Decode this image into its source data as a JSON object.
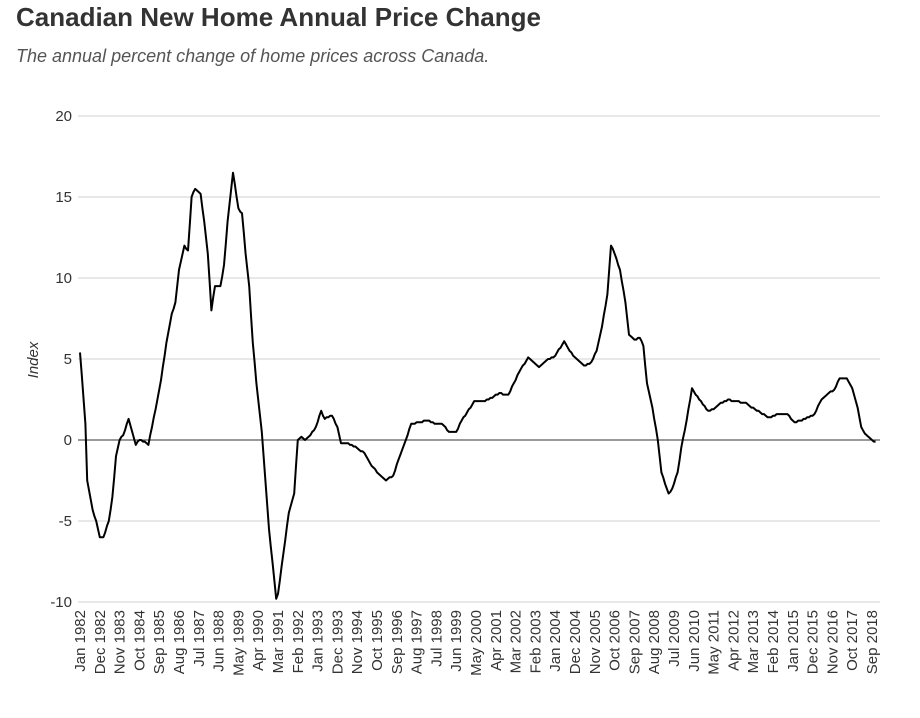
{
  "chart_data": {
    "type": "line",
    "title": "Canadian New Home Annual Price Change",
    "subtitle": "The annual percent change of home prices across Canada.",
    "y_label": "Index",
    "categories": [
      "Jan 1982",
      null,
      null,
      null,
      null,
      null,
      null,
      null,
      null,
      null,
      null,
      "Dec 1982",
      null,
      null,
      null,
      null,
      null,
      null,
      null,
      null,
      null,
      null,
      "Nov 1983",
      null,
      null,
      null,
      null,
      null,
      null,
      null,
      null,
      null,
      null,
      "Oct 1984",
      null,
      null,
      null,
      null,
      null,
      null,
      null,
      null,
      null,
      null,
      "Sep 1985",
      null,
      null,
      null,
      null,
      null,
      null,
      null,
      null,
      null,
      null,
      "Aug 1986",
      null,
      null,
      null,
      null,
      null,
      null,
      null,
      null,
      null,
      null,
      "Jul 1987",
      null,
      null,
      null,
      null,
      null,
      null,
      null,
      null,
      null,
      null,
      "Jun 1988",
      null,
      null,
      null,
      null,
      null,
      null,
      null,
      null,
      null,
      null,
      "May 1989",
      null,
      null,
      null,
      null,
      null,
      null,
      null,
      null,
      null,
      null,
      "Apr 1990",
      null,
      null,
      null,
      null,
      null,
      null,
      null,
      null,
      null,
      null,
      "Mar 1991",
      null,
      null,
      null,
      null,
      null,
      null,
      null,
      null,
      null,
      null,
      "Feb 1992",
      null,
      null,
      null,
      null,
      null,
      null,
      null,
      null,
      null,
      null,
      "Jan 1993",
      null,
      null,
      null,
      null,
      null,
      null,
      null,
      null,
      null,
      null,
      "Dec 1993",
      null,
      null,
      null,
      null,
      null,
      null,
      null,
      null,
      null,
      null,
      "Nov 1994",
      null,
      null,
      null,
      null,
      null,
      null,
      null,
      null,
      null,
      null,
      "Oct 1995",
      null,
      null,
      null,
      null,
      null,
      null,
      null,
      null,
      null,
      null,
      "Sep 1996",
      null,
      null,
      null,
      null,
      null,
      null,
      null,
      null,
      null,
      null,
      "Aug 1997",
      null,
      null,
      null,
      null,
      null,
      null,
      null,
      null,
      null,
      null,
      "Jul 1998",
      null,
      null,
      null,
      null,
      null,
      null,
      null,
      null,
      null,
      null,
      "Jun 1999",
      null,
      null,
      null,
      null,
      null,
      null,
      null,
      null,
      null,
      null,
      "May 2000",
      null,
      null,
      null,
      null,
      null,
      null,
      null,
      null,
      null,
      null,
      "Apr 2001",
      null,
      null,
      null,
      null,
      null,
      null,
      null,
      null,
      null,
      null,
      "Mar 2002",
      null,
      null,
      null,
      null,
      null,
      null,
      null,
      null,
      null,
      null,
      "Feb 2003",
      null,
      null,
      null,
      null,
      null,
      null,
      null,
      null,
      null,
      null,
      "Jan 2004",
      null,
      null,
      null,
      null,
      null,
      null,
      null,
      null,
      null,
      null,
      "Dec 2004",
      null,
      null,
      null,
      null,
      null,
      null,
      null,
      null,
      null,
      null,
      "Nov 2005",
      null,
      null,
      null,
      null,
      null,
      null,
      null,
      null,
      null,
      null,
      "Oct 2006",
      null,
      null,
      null,
      null,
      null,
      null,
      null,
      null,
      null,
      null,
      "Sep 2007",
      null,
      null,
      null,
      null,
      null,
      null,
      null,
      null,
      null,
      null,
      "Aug 2008",
      null,
      null,
      null,
      null,
      null,
      null,
      null,
      null,
      null,
      null,
      "Jul 2009",
      null,
      null,
      null,
      null,
      null,
      null,
      null,
      null,
      null,
      null,
      "Jun 2010",
      null,
      null,
      null,
      null,
      null,
      null,
      null,
      null,
      null,
      null,
      "May 2011",
      null,
      null,
      null,
      null,
      null,
      null,
      null,
      null,
      null,
      null,
      "Apr 2012",
      null,
      null,
      null,
      null,
      null,
      null,
      null,
      null,
      null,
      null,
      "Mar 2013",
      null,
      null,
      null,
      null,
      null,
      null,
      null,
      null,
      null,
      null,
      "Feb 2014",
      null,
      null,
      null,
      null,
      null,
      null,
      null,
      null,
      null,
      null,
      "Jan 2015",
      null,
      null,
      null,
      null,
      null,
      null,
      null,
      null,
      null,
      null,
      "Dec 2015",
      null,
      null,
      null,
      null,
      null,
      null,
      null,
      null,
      null,
      null,
      "Nov 2016",
      null,
      null,
      null,
      null,
      null,
      null,
      null,
      null,
      null,
      null,
      "Oct 2017",
      null,
      null,
      null,
      null,
      null,
      null,
      null,
      null,
      null,
      null,
      "Sep 2018",
      null,
      null
    ],
    "values": [
      5.4,
      4.0,
      2.5,
      1.0,
      -2.5,
      -3.1,
      -3.7,
      -4.3,
      -4.7,
      -5.0,
      -5.5,
      -6.0,
      -6.0,
      -6.0,
      -5.7,
      -5.3,
      -5.0,
      -4.3,
      -3.5,
      -2.3,
      -1.0,
      -0.5,
      0.0,
      0.2,
      0.3,
      0.6,
      1.0,
      1.3,
      0.9,
      0.5,
      0.1,
      -0.3,
      -0.1,
      0.0,
      0.0,
      -0.1,
      -0.1,
      -0.2,
      -0.3,
      0.3,
      0.8,
      1.4,
      1.9,
      2.5,
      3.1,
      3.7,
      4.5,
      5.2,
      6.0,
      6.6,
      7.2,
      7.8,
      8.1,
      8.5,
      9.5,
      10.5,
      11.0,
      11.5,
      12.0,
      11.8,
      11.7,
      13.3,
      15.0,
      15.3,
      15.5,
      15.4,
      15.3,
      15.2,
      14.3,
      13.5,
      12.5,
      11.5,
      9.8,
      8.0,
      8.8,
      9.5,
      9.5,
      9.5,
      9.5,
      10.1,
      10.8,
      12.1,
      13.5,
      14.5,
      15.5,
      16.5,
      15.8,
      15.0,
      14.3,
      14.1,
      14.0,
      12.8,
      11.5,
      10.5,
      9.5,
      7.7,
      6.0,
      4.8,
      3.5,
      2.5,
      1.5,
      0.5,
      -1.0,
      -2.5,
      -4.0,
      -5.5,
      -6.6,
      -7.6,
      -8.7,
      -9.8,
      -9.5,
      -8.7,
      -7.8,
      -7.0,
      -6.2,
      -5.3,
      -4.5,
      -4.1,
      -3.7,
      -3.3,
      -1.6,
      0.0,
      0.1,
      0.2,
      0.1,
      0.0,
      0.1,
      0.2,
      0.3,
      0.5,
      0.6,
      0.8,
      1.1,
      1.5,
      1.8,
      1.5,
      1.3,
      1.4,
      1.4,
      1.5,
      1.5,
      1.3,
      1.0,
      0.8,
      0.3,
      -0.2,
      -0.2,
      -0.2,
      -0.2,
      -0.2,
      -0.3,
      -0.3,
      -0.4,
      -0.4,
      -0.5,
      -0.6,
      -0.7,
      -0.7,
      -0.8,
      -1.0,
      -1.2,
      -1.4,
      -1.6,
      -1.7,
      -1.8,
      -2.0,
      -2.1,
      -2.2,
      -2.3,
      -2.4,
      -2.5,
      -2.4,
      -2.3,
      -2.3,
      -2.2,
      -1.9,
      -1.5,
      -1.2,
      -0.9,
      -0.6,
      -0.3,
      0.0,
      0.3,
      0.7,
      1.0,
      1.0,
      1.0,
      1.1,
      1.1,
      1.1,
      1.1,
      1.2,
      1.2,
      1.2,
      1.2,
      1.1,
      1.1,
      1.0,
      1.0,
      1.0,
      1.0,
      1.0,
      0.9,
      0.8,
      0.6,
      0.5,
      0.5,
      0.5,
      0.5,
      0.5,
      0.7,
      1.0,
      1.2,
      1.4,
      1.5,
      1.7,
      1.9,
      2.0,
      2.2,
      2.4,
      2.4,
      2.4,
      2.4,
      2.4,
      2.4,
      2.4,
      2.5,
      2.5,
      2.6,
      2.6,
      2.7,
      2.8,
      2.8,
      2.9,
      2.9,
      2.8,
      2.8,
      2.8,
      2.8,
      3.0,
      3.3,
      3.5,
      3.7,
      4.0,
      4.2,
      4.4,
      4.6,
      4.7,
      4.9,
      5.1,
      5.0,
      4.9,
      4.8,
      4.7,
      4.6,
      4.5,
      4.6,
      4.7,
      4.8,
      4.9,
      5.0,
      5.0,
      5.1,
      5.1,
      5.2,
      5.4,
      5.6,
      5.7,
      5.9,
      6.1,
      5.9,
      5.7,
      5.5,
      5.4,
      5.2,
      5.1,
      5.0,
      4.9,
      4.8,
      4.7,
      4.6,
      4.6,
      4.7,
      4.7,
      4.8,
      5.0,
      5.3,
      5.5,
      6.0,
      6.5,
      7.0,
      7.7,
      8.3,
      9.0,
      10.5,
      12.0,
      11.8,
      11.5,
      11.2,
      10.8,
      10.5,
      9.8,
      9.2,
      8.5,
      7.5,
      6.5,
      6.4,
      6.3,
      6.2,
      6.2,
      6.3,
      6.3,
      6.1,
      5.8,
      4.6,
      3.5,
      3.0,
      2.5,
      2.0,
      1.3,
      0.7,
      0.0,
      -1.0,
      -2.0,
      -2.3,
      -2.7,
      -3.0,
      -3.3,
      -3.2,
      -3.0,
      -2.7,
      -2.3,
      -2.0,
      -1.3,
      -0.5,
      0.1,
      0.6,
      1.2,
      1.9,
      2.5,
      3.2,
      3.0,
      2.8,
      2.7,
      2.5,
      2.4,
      2.2,
      2.1,
      1.9,
      1.8,
      1.8,
      1.9,
      1.9,
      2.0,
      2.1,
      2.2,
      2.3,
      2.3,
      2.4,
      2.4,
      2.5,
      2.5,
      2.4,
      2.4,
      2.4,
      2.4,
      2.4,
      2.3,
      2.3,
      2.3,
      2.3,
      2.2,
      2.1,
      2.0,
      2.0,
      1.9,
      1.8,
      1.8,
      1.7,
      1.6,
      1.6,
      1.5,
      1.4,
      1.4,
      1.4,
      1.5,
      1.5,
      1.6,
      1.6,
      1.6,
      1.6,
      1.6,
      1.6,
      1.6,
      1.5,
      1.3,
      1.2,
      1.1,
      1.1,
      1.2,
      1.2,
      1.2,
      1.3,
      1.3,
      1.4,
      1.4,
      1.5,
      1.5,
      1.6,
      1.8,
      2.1,
      2.3,
      2.5,
      2.6,
      2.7,
      2.8,
      2.9,
      3.0,
      3.0,
      3.1,
      3.3,
      3.6,
      3.8,
      3.8,
      3.8,
      3.8,
      3.8,
      3.6,
      3.4,
      3.2,
      2.8,
      2.4,
      2.0,
      1.4,
      0.8,
      0.6,
      0.4,
      0.3,
      0.2,
      0.1,
      0.0,
      -0.1,
      -0.1
    ],
    "color": "#000000",
    "ylim": [
      -10,
      20
    ],
    "yticks": [
      -10,
      -5,
      0,
      5,
      10,
      15,
      20
    ],
    "grid": true
  }
}
